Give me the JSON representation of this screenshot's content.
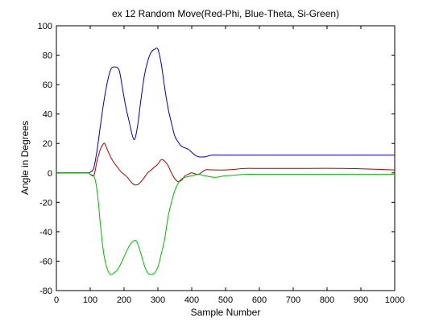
{
  "chart_data": {
    "type": "line",
    "title": "ex 12 Random Move(Red-Phi, Blue-Theta, Si-Green)",
    "xlabel": "Sample Number",
    "ylabel": "Angle in Degrees",
    "xlim": [
      0,
      1000
    ],
    "ylim": [
      -80,
      100
    ],
    "xticks": [
      0,
      100,
      200,
      300,
      400,
      500,
      600,
      700,
      800,
      900,
      1000
    ],
    "yticks": [
      -80,
      -60,
      -40,
      -20,
      0,
      20,
      40,
      60,
      80,
      100
    ],
    "grid": false,
    "series": [
      {
        "color": "#0000aa",
        "x": [
          0,
          80,
          95,
          100,
          110,
          120,
          130,
          140,
          150,
          160,
          170,
          185,
          195,
          205,
          215,
          225,
          232,
          240,
          250,
          260,
          270,
          280,
          290,
          300,
          310,
          320,
          330,
          340,
          350,
          360,
          370,
          380,
          390,
          400,
          410,
          420,
          440,
          460,
          500,
          560,
          580,
          700,
          850,
          1000
        ],
        "y": [
          0,
          0,
          0,
          0.5,
          3,
          15,
          32,
          48,
          61,
          70,
          72,
          70,
          58,
          45,
          35,
          25,
          23,
          32,
          50,
          66,
          76,
          82,
          84,
          84,
          74,
          58,
          44,
          34,
          25,
          21,
          18,
          17,
          16,
          14,
          12,
          11,
          11,
          12,
          12,
          12,
          12,
          12,
          12,
          12
        ]
      },
      {
        "color": "#aa0000",
        "x": [
          0,
          80,
          95,
          100,
          110,
          115,
          120,
          130,
          140,
          145,
          150,
          160,
          170,
          180,
          190,
          200,
          210,
          220,
          230,
          240,
          250,
          260,
          270,
          280,
          290,
          300,
          310,
          320,
          330,
          340,
          350,
          360,
          370,
          380,
          390,
          400,
          420,
          440,
          460,
          500,
          560,
          600,
          700,
          850,
          1000
        ],
        "y": [
          0,
          0,
          0,
          -1,
          -2,
          2,
          8,
          16,
          20,
          19,
          16,
          11,
          7,
          4,
          1,
          -1,
          -3,
          -6,
          -8,
          -8,
          -6,
          -3,
          0,
          2,
          4,
          6,
          9,
          8,
          5,
          0,
          -4,
          -6,
          -5,
          -2,
          -1,
          0,
          -1,
          2,
          2,
          2,
          3,
          3,
          3,
          3,
          2
        ]
      },
      {
        "color": "#00bb00",
        "x": [
          0,
          80,
          95,
          100,
          110,
          115,
          120,
          125,
          130,
          140,
          150,
          160,
          170,
          180,
          190,
          200,
          210,
          220,
          230,
          235,
          240,
          250,
          260,
          270,
          280,
          290,
          300,
          310,
          320,
          330,
          340,
          350,
          360,
          370,
          380,
          400,
          420,
          440,
          470,
          500,
          560,
          600,
          700,
          850,
          1000
        ],
        "y": [
          0,
          0,
          0,
          -1,
          -2,
          -5,
          -12,
          -22,
          -35,
          -55,
          -65,
          -69,
          -68,
          -66,
          -62,
          -57,
          -52,
          -48,
          -46,
          -46,
          -48,
          -55,
          -63,
          -68,
          -69,
          -68,
          -64,
          -55,
          -45,
          -30,
          -20,
          -12,
          -7,
          -4,
          -3,
          -2,
          -1,
          -2,
          -3,
          -2,
          -1,
          -1,
          -1,
          -1,
          -1
        ]
      }
    ]
  }
}
